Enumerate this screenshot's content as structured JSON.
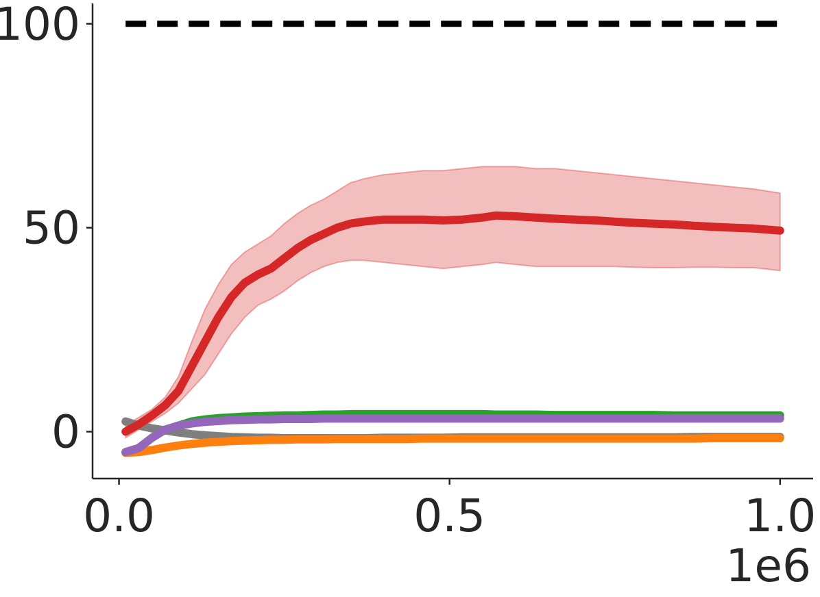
{
  "chart_data": {
    "type": "line",
    "title": "",
    "xlabel": "",
    "ylabel": "",
    "x_offset_text": "1e6",
    "xlim": [
      -0.04,
      1.05
    ],
    "ylim": [
      -11.5,
      105
    ],
    "xticks": [
      0.0,
      0.5,
      1.0
    ],
    "xtick_labels": [
      "0.0",
      "0.5",
      "1.0"
    ],
    "yticks": [
      0,
      50,
      100
    ],
    "ytick_labels": [
      "0",
      "50",
      "100"
    ],
    "grid": false,
    "legend": "none",
    "reference_line": {
      "y": 100,
      "style": "dashed",
      "color": "#000000",
      "x_range": [
        0.01,
        1.0
      ]
    },
    "x": [
      0.01,
      0.03,
      0.05,
      0.07,
      0.09,
      0.11,
      0.13,
      0.15,
      0.17,
      0.19,
      0.21,
      0.23,
      0.25,
      0.27,
      0.29,
      0.31,
      0.33,
      0.35,
      0.37,
      0.4,
      0.43,
      0.46,
      0.49,
      0.52,
      0.55,
      0.57,
      0.6,
      0.63,
      0.66,
      0.69,
      0.72,
      0.75,
      0.78,
      0.81,
      0.84,
      0.87,
      0.9,
      0.93,
      0.96,
      1.0
    ],
    "series": [
      {
        "color": "#d62728",
        "values": [
          0.0,
          1.8,
          4.0,
          6.5,
          10.0,
          16.0,
          22.0,
          28.0,
          33.0,
          36.5,
          38.5,
          40.0,
          42.5,
          45.0,
          47.0,
          48.5,
          50.0,
          51.0,
          51.5,
          52.0,
          52.0,
          52.0,
          51.8,
          52.0,
          52.5,
          53.0,
          52.8,
          52.5,
          52.2,
          52.0,
          51.8,
          51.5,
          51.2,
          51.0,
          50.8,
          50.5,
          50.2,
          50.0,
          49.8,
          49.3
        ],
        "upper": [
          1.5,
          3.5,
          5.5,
          8.5,
          13.5,
          22.0,
          30.0,
          36.0,
          41.0,
          44.0,
          46.0,
          48.0,
          51.0,
          53.5,
          55.5,
          57.0,
          59.0,
          61.0,
          62.0,
          63.0,
          63.5,
          64.0,
          64.0,
          64.5,
          65.0,
          65.0,
          65.0,
          64.5,
          64.5,
          64.0,
          63.5,
          63.0,
          62.5,
          62.0,
          61.5,
          61.0,
          60.5,
          60.0,
          59.5,
          58.5
        ],
        "lower": [
          -1.5,
          0.5,
          2.5,
          4.5,
          7.0,
          10.5,
          14.0,
          19.0,
          24.0,
          28.0,
          31.0,
          32.5,
          34.5,
          37.0,
          39.0,
          40.5,
          41.5,
          42.0,
          42.0,
          41.5,
          41.0,
          40.5,
          40.0,
          40.5,
          41.0,
          41.5,
          41.0,
          40.5,
          40.5,
          40.5,
          40.5,
          40.5,
          40.3,
          40.2,
          40.2,
          40.3,
          40.3,
          40.2,
          40.2,
          39.5
        ]
      },
      {
        "color": "#2ca02c",
        "values": [
          -5.0,
          -4.0,
          -1.5,
          0.5,
          1.5,
          2.5,
          3.0,
          3.3,
          3.5,
          3.7,
          3.8,
          3.9,
          4.0,
          4.0,
          4.1,
          4.2,
          4.2,
          4.3,
          4.3,
          4.3,
          4.3,
          4.3,
          4.3,
          4.3,
          4.3,
          4.2,
          4.2,
          4.2,
          4.1,
          4.1,
          4.1,
          4.1,
          4.1,
          4.1,
          4.0,
          4.0,
          4.0,
          4.0,
          4.0,
          4.0
        ]
      },
      {
        "color": "#9467bd",
        "values": [
          -5.0,
          -4.0,
          -1.5,
          0.5,
          1.5,
          2.0,
          2.4,
          2.6,
          2.8,
          2.9,
          3.0,
          3.0,
          3.1,
          3.1,
          3.1,
          3.2,
          3.2,
          3.2,
          3.2,
          3.2,
          3.2,
          3.2,
          3.2,
          3.2,
          3.2,
          3.2,
          3.2,
          3.2,
          3.2,
          3.2,
          3.2,
          3.2,
          3.2,
          3.2,
          3.2,
          3.2,
          3.2,
          3.2,
          3.2,
          3.2
        ]
      },
      {
        "color": "#7f7f7f",
        "values": [
          2.5,
          1.5,
          0.8,
          0.3,
          -0.2,
          -0.6,
          -0.9,
          -1.1,
          -1.3,
          -1.4,
          -1.5,
          -1.5,
          -1.6,
          -1.6,
          -1.6,
          -1.6,
          -1.6,
          -1.6,
          -1.6,
          -1.5,
          -1.5,
          -1.5,
          -1.5,
          -1.4,
          -1.4,
          -1.4,
          -1.4,
          -1.4,
          -1.4,
          -1.4,
          -1.4,
          -1.4,
          -1.4,
          -1.4,
          -1.4,
          -1.3,
          -1.3,
          -1.3,
          -1.3,
          -1.3
        ]
      },
      {
        "color": "#ff7f0e",
        "values": [
          -5.2,
          -5.0,
          -4.5,
          -3.9,
          -3.4,
          -3.0,
          -2.7,
          -2.5,
          -2.3,
          -2.2,
          -2.1,
          -2.0,
          -2.0,
          -1.9,
          -1.9,
          -1.9,
          -1.8,
          -1.8,
          -1.8,
          -1.8,
          -1.8,
          -1.7,
          -1.7,
          -1.7,
          -1.7,
          -1.7,
          -1.7,
          -1.7,
          -1.7,
          -1.7,
          -1.7,
          -1.7,
          -1.7,
          -1.7,
          -1.7,
          -1.7,
          -1.6,
          -1.6,
          -1.6,
          -1.6
        ]
      }
    ]
  }
}
